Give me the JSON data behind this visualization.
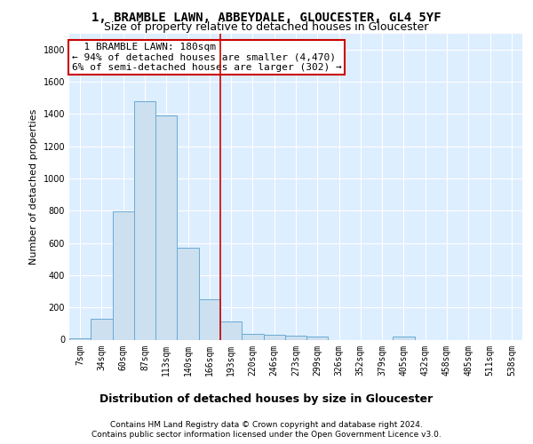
{
  "title": "1, BRAMBLE LAWN, ABBEYDALE, GLOUCESTER, GL4 5YF",
  "subtitle": "Size of property relative to detached houses in Gloucester",
  "xlabel": "Distribution of detached houses by size in Gloucester",
  "ylabel": "Number of detached properties",
  "bar_color": "#cce0f0",
  "bar_edge_color": "#6aaad4",
  "background_color": "#ddeeff",
  "grid_color": "#ffffff",
  "fig_bg_color": "#ffffff",
  "categories": [
    "7sqm",
    "34sqm",
    "60sqm",
    "87sqm",
    "113sqm",
    "140sqm",
    "166sqm",
    "193sqm",
    "220sqm",
    "246sqm",
    "273sqm",
    "299sqm",
    "326sqm",
    "352sqm",
    "379sqm",
    "405sqm",
    "432sqm",
    "458sqm",
    "485sqm",
    "511sqm",
    "538sqm"
  ],
  "values": [
    10,
    130,
    795,
    1480,
    1390,
    570,
    250,
    115,
    35,
    30,
    25,
    20,
    0,
    0,
    0,
    20,
    0,
    0,
    0,
    0,
    0
  ],
  "ylim": [
    0,
    1900
  ],
  "yticks": [
    0,
    200,
    400,
    600,
    800,
    1000,
    1200,
    1400,
    1600,
    1800
  ],
  "vline_x": 6.5,
  "vline_color": "#cc0000",
  "annotation_text": "  1 BRAMBLE LAWN: 180sqm  \n← 94% of detached houses are smaller (4,470)\n6% of semi-detached houses are larger (302) →",
  "annotation_box_color": "#ffffff",
  "annotation_box_edge": "#cc0000",
  "footer_line1": "Contains HM Land Registry data © Crown copyright and database right 2024.",
  "footer_line2": "Contains public sector information licensed under the Open Government Licence v3.0.",
  "title_fontsize": 10,
  "subtitle_fontsize": 9,
  "xlabel_fontsize": 9,
  "ylabel_fontsize": 8,
  "tick_fontsize": 7,
  "annotation_fontsize": 8,
  "footer_fontsize": 6.5
}
